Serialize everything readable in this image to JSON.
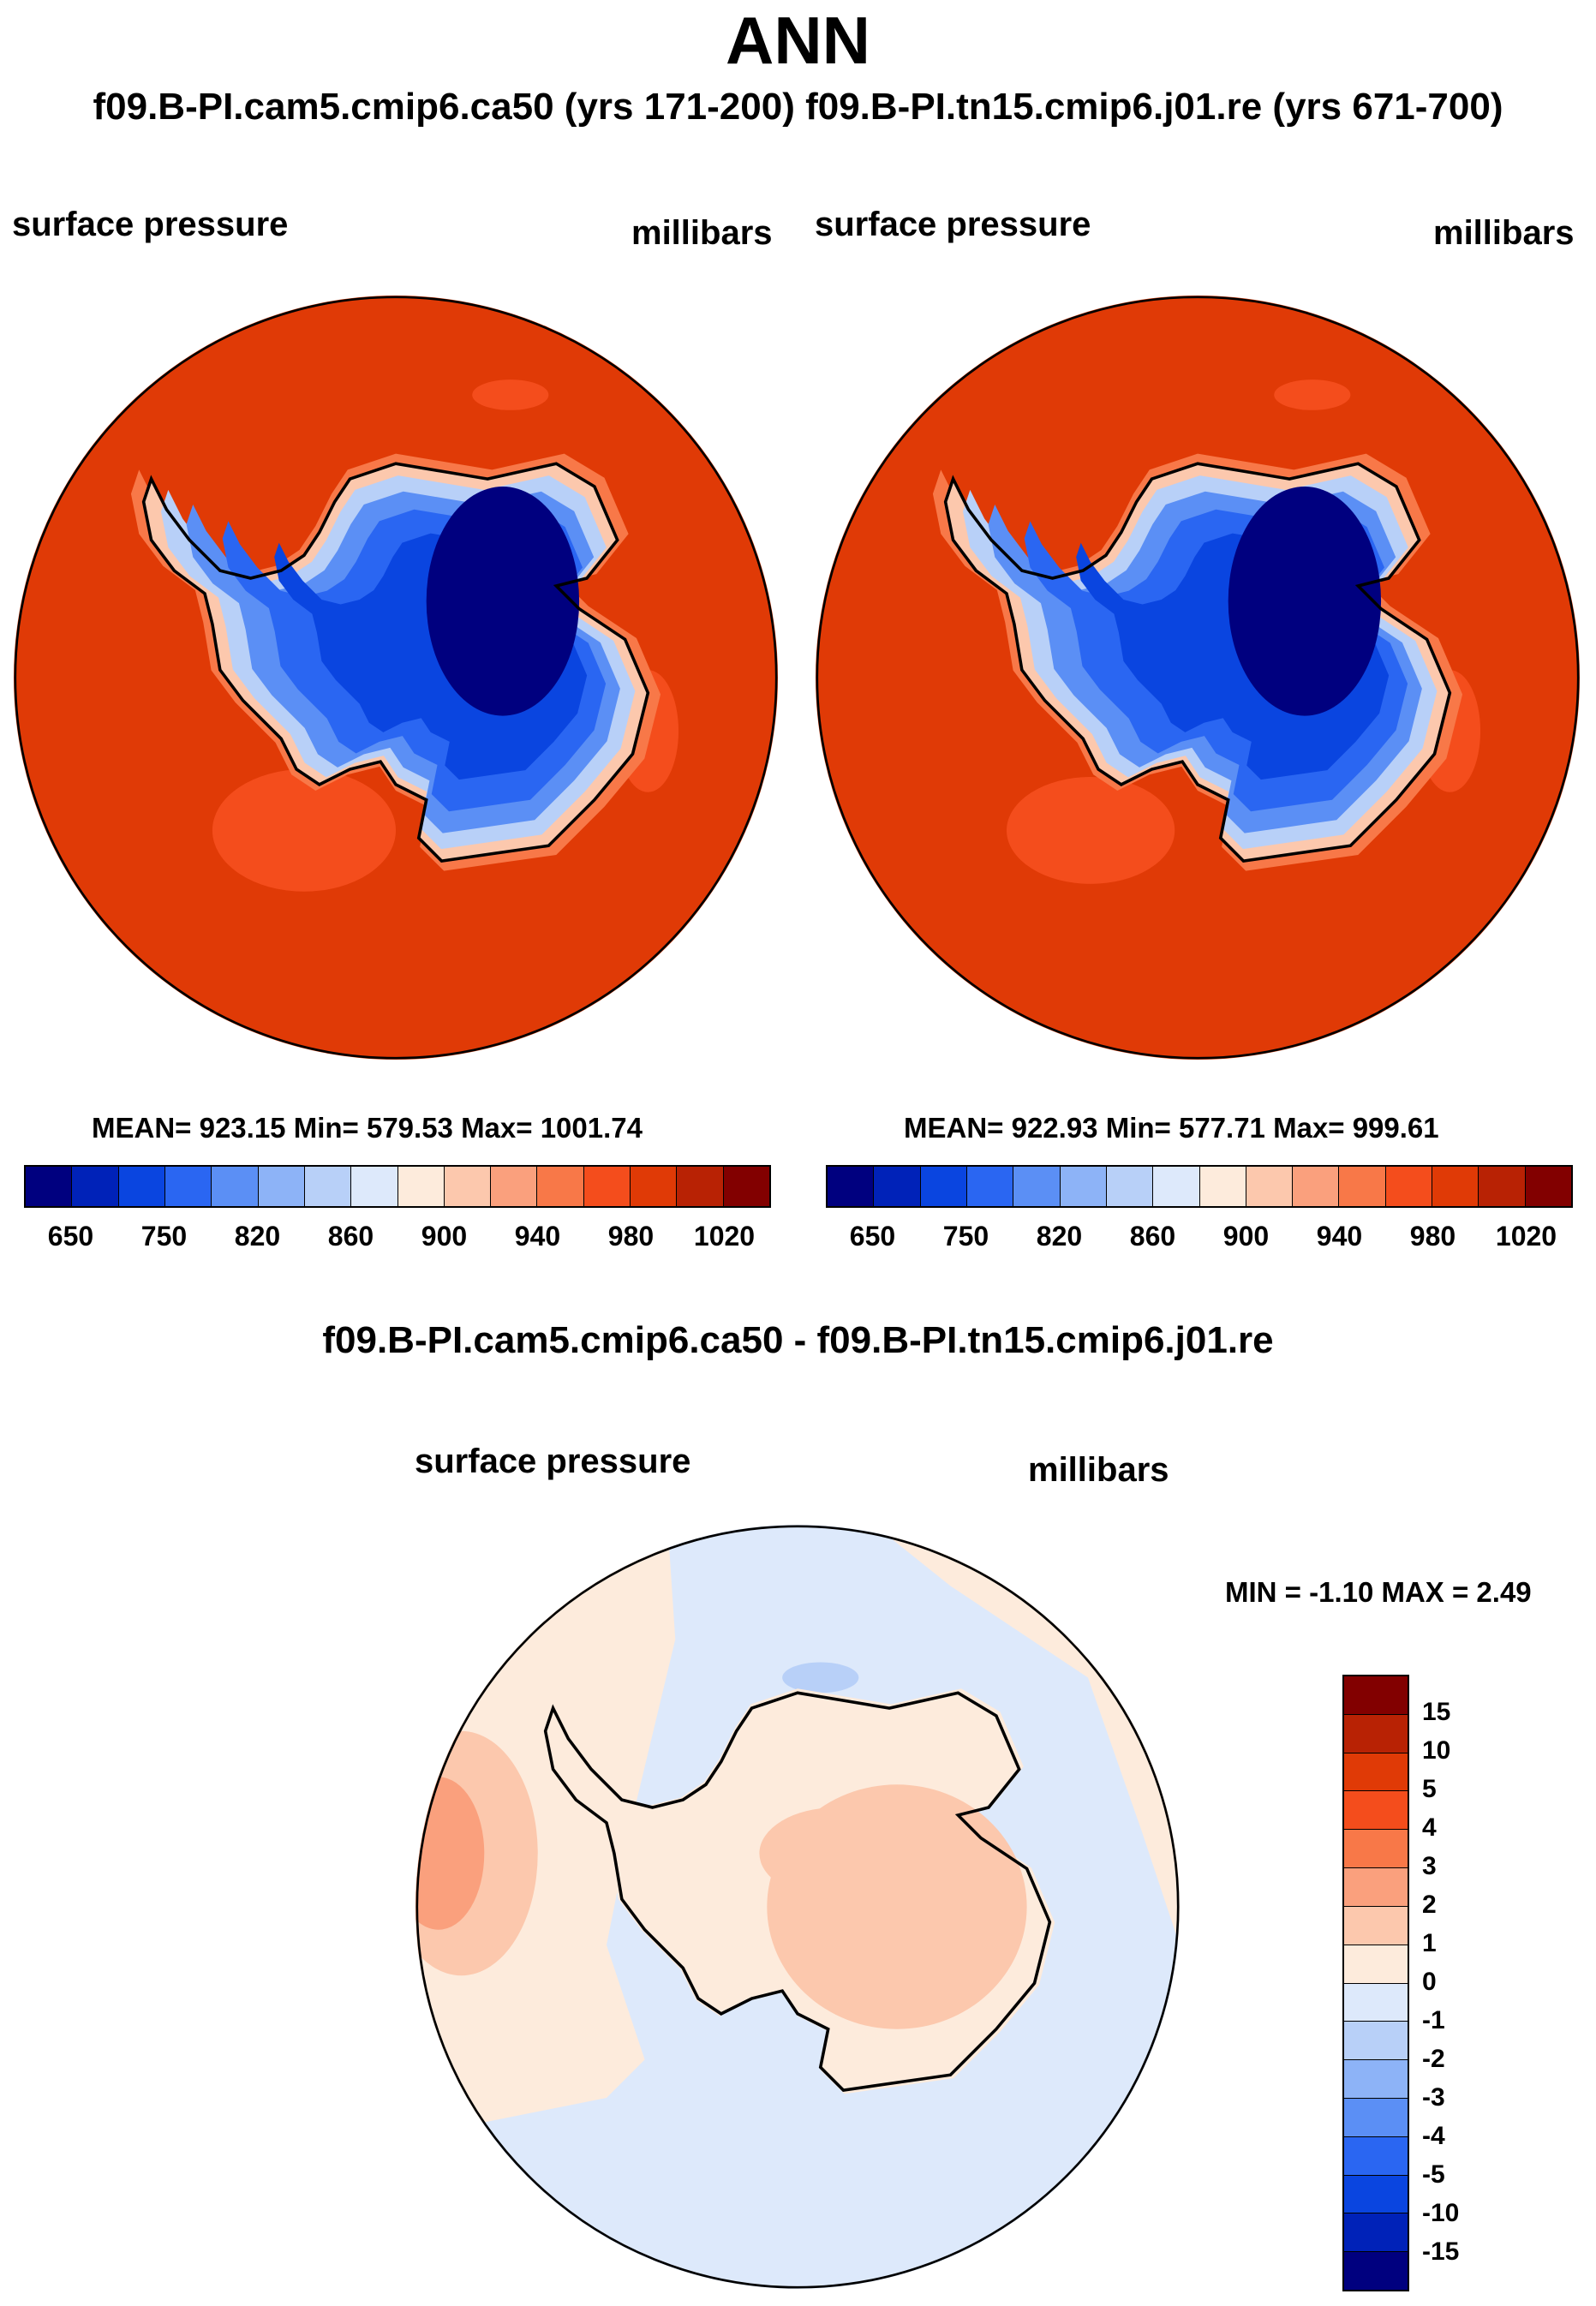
{
  "page": {
    "title": "ANN",
    "run_titles": "f09.B-PI.cam5.cmip6.ca50 (yrs 171-200)  f09.B-PI.tn15.cmip6.j01.re (yrs 671-700)"
  },
  "panel_left": {
    "variable": "surface pressure",
    "units": "millibars",
    "stats": "MEAN= 923.15  Min= 579.53  Max= 1001.74"
  },
  "panel_right": {
    "variable": "surface pressure",
    "units": "millibars",
    "stats": "MEAN= 922.93  Min= 577.71  Max= 999.61"
  },
  "panel_diff": {
    "title": "f09.B-PI.cam5.cmip6.ca50 - f09.B-PI.tn15.cmip6.j01.re",
    "variable": "surface pressure",
    "units": "millibars",
    "stats": "MIN =  -1.10 MAX =   2.49"
  },
  "colorbar_main": {
    "ticks": [
      "650",
      "750",
      "820",
      "860",
      "900",
      "940",
      "980",
      "1020"
    ],
    "colors": [
      "#00007f",
      "#0022b8",
      "#0a45e0",
      "#2a66f2",
      "#5b8ff5",
      "#8db3f7",
      "#b8d0f8",
      "#dde9fb",
      "#fdebdc",
      "#fcc8ad",
      "#faa07d",
      "#f87848",
      "#f44d1c",
      "#e03a06",
      "#b82204",
      "#820000"
    ]
  },
  "colorbar_diff": {
    "ticks": [
      "15",
      "10",
      "5",
      "4",
      "3",
      "2",
      "1",
      "0",
      "-1",
      "-2",
      "-3",
      "-4",
      "-5",
      "-10",
      "-15"
    ],
    "colors": [
      "#820000",
      "#b82204",
      "#e03a06",
      "#f44d1c",
      "#f87848",
      "#faa07d",
      "#fcc8ad",
      "#fdebdc",
      "#dde9fb",
      "#b8d0f8",
      "#8db3f7",
      "#5b8ff5",
      "#2a66f2",
      "#0a45e0",
      "#0022b8",
      "#00007f"
    ]
  },
  "chart_data": [
    {
      "type": "heatmap",
      "title": "surface pressure",
      "units": "millibars",
      "mean": 923.15,
      "min": 579.53,
      "max": 1001.74
    },
    {
      "type": "heatmap",
      "title": "surface pressure",
      "units": "millibars",
      "mean": 922.93,
      "min": 577.71,
      "max": 999.61
    },
    {
      "type": "heatmap",
      "title": "surface pressure",
      "units": "millibars",
      "min": -1.1,
      "max": 2.49
    }
  ]
}
